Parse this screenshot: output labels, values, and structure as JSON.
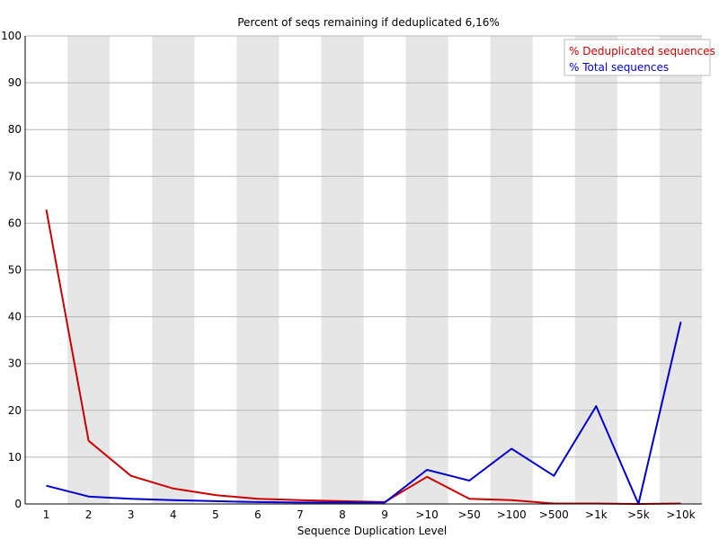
{
  "chart_data": {
    "type": "line",
    "title": "Percent of seqs remaining if deduplicated 6,16%",
    "xlabel": "Sequence Duplication Level",
    "ylabel": "",
    "ylim": [
      0,
      100
    ],
    "yticks": [
      0,
      10,
      20,
      30,
      40,
      50,
      60,
      70,
      80,
      90,
      100
    ],
    "categories": [
      "1",
      "2",
      "3",
      "4",
      "5",
      "6",
      "7",
      "8",
      "9",
      ">10",
      ">50",
      ">100",
      ">500",
      ">1k",
      ">5k",
      ">10k"
    ],
    "grid": true,
    "legend_position": "top-right",
    "series": [
      {
        "name": "% Deduplicated sequences",
        "color": "#cc0000",
        "values": [
          62.9,
          13.5,
          6.0,
          3.3,
          1.9,
          1.1,
          0.8,
          0.6,
          0.4,
          5.8,
          1.1,
          0.8,
          0.1,
          0.1,
          0.0,
          0.1
        ]
      },
      {
        "name": "% Total sequences",
        "color": "#0000cc",
        "values": [
          3.9,
          1.6,
          1.1,
          0.8,
          0.6,
          0.4,
          0.3,
          0.3,
          0.3,
          7.3,
          5.0,
          11.8,
          6.0,
          20.9,
          0.0,
          38.9
        ]
      }
    ]
  }
}
